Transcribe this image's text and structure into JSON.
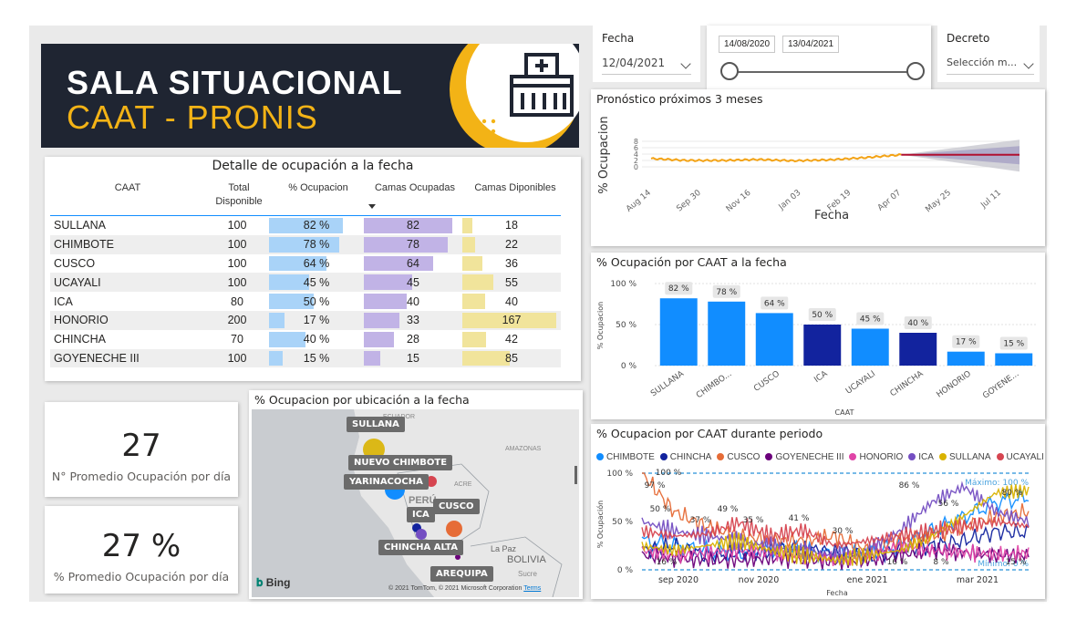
{
  "banner": {
    "line1": "SALA SITUACIONAL",
    "line2": "CAAT - PRONIS"
  },
  "fecha_slicer": {
    "label": "Fecha",
    "value": "12/04/2021"
  },
  "range_slicer": {
    "start": "14/08/2020",
    "end": "13/04/2021"
  },
  "decreto_slicer": {
    "label": "Decreto",
    "value": "Selección m..."
  },
  "colors": {
    "navy": "#1f2532",
    "gold": "#f3b316",
    "bar_light": "#118dff",
    "bar_dark": "#12239e",
    "pct_bar": "#a9d3f8",
    "occ_bar": "#c1b3e6",
    "free_bar": "#f1e49b"
  },
  "detail_table": {
    "title": "Detalle de ocupación a la fecha",
    "headers": {
      "caat": "CAAT",
      "total1": "Total",
      "total2": "Disponible",
      "pct": "% Ocupacion",
      "occ": "Camas Ocupadas",
      "free": "Camas Diponibles"
    },
    "rows": [
      {
        "caat": "SULLANA",
        "total": "100",
        "pct": "82 %",
        "occ": "82",
        "free": "18",
        "pct_v": 82,
        "occ_v": 82,
        "free_v": 18
      },
      {
        "caat": "CHIMBOTE",
        "total": "100",
        "pct": "78 %",
        "occ": "78",
        "free": "22",
        "pct_v": 78,
        "occ_v": 78,
        "free_v": 22
      },
      {
        "caat": "CUSCO",
        "total": "100",
        "pct": "64 %",
        "occ": "64",
        "free": "36",
        "pct_v": 64,
        "occ_v": 64,
        "free_v": 36
      },
      {
        "caat": "UCAYALI",
        "total": "100",
        "pct": "45 %",
        "occ": "45",
        "free": "55",
        "pct_v": 45,
        "occ_v": 45,
        "free_v": 55
      },
      {
        "caat": "ICA",
        "total": "80",
        "pct": "50 %",
        "occ": "40",
        "free": "40",
        "pct_v": 50,
        "occ_v": 40,
        "free_v": 40
      },
      {
        "caat": "HONORIO",
        "total": "200",
        "pct": "17 %",
        "occ": "33",
        "free": "167",
        "pct_v": 17,
        "occ_v": 33,
        "free_v": 167
      },
      {
        "caat": "CHINCHA",
        "total": "70",
        "pct": "40 %",
        "occ": "28",
        "free": "42",
        "pct_v": 40,
        "occ_v": 28,
        "free_v": 42
      },
      {
        "caat": "GOYENECHE III",
        "total": "100",
        "pct": "15 %",
        "occ": "15",
        "free": "85",
        "pct_v": 15,
        "occ_v": 15,
        "free_v": 85
      }
    ]
  },
  "kpi1": {
    "value": "27",
    "label": "N° Promedio Ocupación por día"
  },
  "kpi2": {
    "value": "27 %",
    "label": "% Promedio Ocupación por día"
  },
  "map": {
    "title": "% Ocupacion por ubicación a la fecha",
    "labels": [
      "SULLANA",
      "NUEVO CHIMBOTE",
      "YARINACOCHA",
      "CUSCO",
      "ICA",
      "CHINCHA ALTA",
      "AREQUIPA"
    ],
    "geo": [
      "ECUADOR",
      "AMAZONAS",
      "ACRE",
      "PERÚ",
      "La Paz",
      "BOLIVIA",
      "Sucre"
    ],
    "bing": "Bing",
    "copyright": "© 2021 TomTom, © 2021 Microsoft Corporation",
    "terms": "Terms"
  },
  "chart_data": [
    {
      "type": "line",
      "title": "Pronóstico próximos 3 meses",
      "xlabel": "Fecha",
      "ylabel": "% Ocupacion",
      "x_ticks": [
        "Aug 14",
        "Sep 30",
        "Nov 16",
        "Jan 03",
        "Feb 19",
        "Apr 07",
        "May 25",
        "Jul 11"
      ],
      "y_ticks": [
        "0",
        "2",
        "4",
        "6",
        "8"
      ],
      "ylim": [
        -2,
        10
      ],
      "series": [
        {
          "values": [
            2.6,
            2.0,
            2.0,
            2.3,
            1.9,
            2.2,
            2.9,
            3.8
          ]
        },
        {
          "values": [
            3.8,
            3.8,
            3.8
          ]
        }
      ]
    },
    {
      "type": "bar",
      "title": "% Ocupación por CAAT a la fecha",
      "xlabel": "CAAT",
      "ylabel": "% Ocupacion",
      "categories": [
        "SULLANA",
        "CHIMBO...",
        "CUSCO",
        "ICA",
        "UCAYALI",
        "CHINCHA",
        "HONORIO",
        "GOYENE..."
      ],
      "values": [
        82,
        78,
        64,
        50,
        45,
        40,
        17,
        15
      ],
      "labels": [
        "82 %",
        "78 %",
        "64 %",
        "50 %",
        "45 %",
        "40 %",
        "17 %",
        "15 %"
      ],
      "y_ticks": [
        "0 %",
        "50 %",
        "100 %"
      ],
      "ylim": [
        0,
        100
      ],
      "highlight": [
        false,
        false,
        false,
        true,
        false,
        true,
        false,
        false
      ]
    },
    {
      "type": "line",
      "title": "% Ocupacion por CAAT durante periodo",
      "xlabel": "Fecha",
      "ylabel": "% Ocupación",
      "x_ticks": [
        "sep 2020",
        "nov 2020",
        "ene 2021",
        "mar 2021"
      ],
      "y_ticks": [
        "0 %",
        "50 %",
        "100 %"
      ],
      "ylim": [
        0,
        100
      ],
      "ref_max_label": "Máximo: 100 %",
      "ref_min_label": "Mínimo: 0 %",
      "annotations": [
        "100 %",
        "97 %",
        "50 %",
        "49 %",
        "37 %",
        "35 %",
        "41 %",
        "30 %",
        "86 %",
        "56 %",
        "80 %",
        "16 %",
        "16 %",
        "8 %",
        "15 %"
      ],
      "series": [
        {
          "name": "CHIMBOTE",
          "color": "#118dff",
          "values": [
            30,
            25,
            20,
            18,
            22,
            20,
            15,
            18,
            25,
            40,
            55,
            70,
            75
          ]
        },
        {
          "name": "CHINCHA",
          "color": "#12239e",
          "values": [
            20,
            25,
            15,
            18,
            20,
            22,
            18,
            15,
            20,
            25,
            30,
            40,
            38
          ]
        },
        {
          "name": "CUSCO",
          "color": "#e66c37",
          "values": [
            100,
            60,
            45,
            35,
            30,
            30,
            35,
            20,
            30,
            35,
            45,
            55,
            60
          ]
        },
        {
          "name": "GOYENECHE III",
          "color": "#6b007b",
          "values": [
            15,
            12,
            10,
            10,
            12,
            10,
            8,
            10,
            15,
            20,
            18,
            15,
            15
          ]
        },
        {
          "name": "HONORIO",
          "color": "#e044a7",
          "values": [
            20,
            15,
            18,
            20,
            18,
            15,
            12,
            15,
            25,
            20,
            18,
            16,
            17
          ]
        },
        {
          "name": "ICA",
          "color": "#744ec2",
          "values": [
            50,
            40,
            35,
            30,
            25,
            20,
            15,
            20,
            40,
            70,
            86,
            60,
            50
          ]
        },
        {
          "name": "SULLANA",
          "color": "#d9b300",
          "values": [
            25,
            20,
            25,
            30,
            20,
            15,
            10,
            15,
            20,
            35,
            56,
            80,
            82
          ]
        },
        {
          "name": "UCAYALI",
          "color": "#d64550",
          "values": [
            40,
            35,
            37,
            49,
            35,
            41,
            25,
            30,
            35,
            40,
            45,
            50,
            45
          ]
        }
      ]
    }
  ]
}
